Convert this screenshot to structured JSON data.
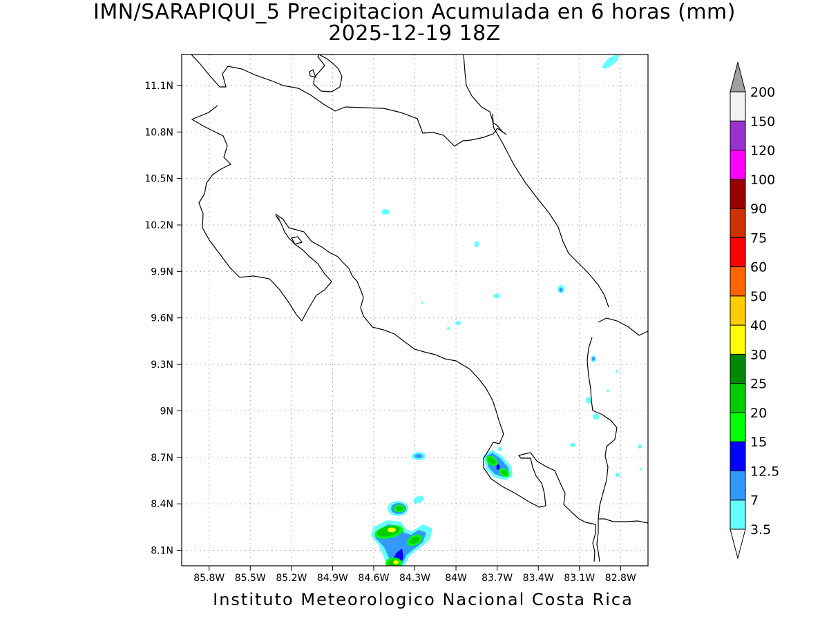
{
  "title": {
    "line1": "IMN/SARAPIQUI_5 Precipitacion Acumulada en 6 horas (mm)",
    "line2": "2025-12-19 18Z"
  },
  "footer": "Instituto Meteorologico Nacional Costa Rica",
  "map": {
    "lon_range": [
      -86.0,
      -82.6
    ],
    "lat_range": [
      8.0,
      11.3
    ],
    "lon_ticks": [
      {
        "value": -85.8,
        "label": "85.8W"
      },
      {
        "value": -85.5,
        "label": "85.5W"
      },
      {
        "value": -85.2,
        "label": "85.2W"
      },
      {
        "value": -84.9,
        "label": "84.9W"
      },
      {
        "value": -84.6,
        "label": "84.6W"
      },
      {
        "value": -84.3,
        "label": "84.3W"
      },
      {
        "value": -84.0,
        "label": "84W"
      },
      {
        "value": -83.7,
        "label": "83.7W"
      },
      {
        "value": -83.4,
        "label": "83.4W"
      },
      {
        "value": -83.1,
        "label": "83.1W"
      },
      {
        "value": -82.8,
        "label": "82.8W"
      }
    ],
    "lat_ticks": [
      {
        "value": 8.1,
        "label": "8.1N"
      },
      {
        "value": 8.4,
        "label": "8.4N"
      },
      {
        "value": 8.7,
        "label": "8.7N"
      },
      {
        "value": 9.0,
        "label": "9N"
      },
      {
        "value": 9.3,
        "label": "9.3N"
      },
      {
        "value": 9.6,
        "label": "9.6N"
      },
      {
        "value": 9.9,
        "label": "9.9N"
      },
      {
        "value": 10.2,
        "label": "10.2N"
      },
      {
        "value": 10.5,
        "label": "10.5N"
      },
      {
        "value": 10.8,
        "label": "10.8N"
      },
      {
        "value": 11.1,
        "label": "11.1N"
      }
    ],
    "grid": "dotted"
  },
  "legend": {
    "units": "mm",
    "levels": [
      "3.5",
      "7",
      "12.5",
      "15",
      "20",
      "25",
      "30",
      "40",
      "50",
      "60",
      "75",
      "90",
      "100",
      "120",
      "150",
      "200"
    ],
    "colors": [
      "#66ffff",
      "#3399ff",
      "#0000ff",
      "#00ff00",
      "#00cc00",
      "#008800",
      "#ffff00",
      "#ffcc00",
      "#ff6600",
      "#ff0000",
      "#cc3300",
      "#990000",
      "#ff00ff",
      "#9933cc",
      "#f2f2f2",
      "#a0a0a0"
    ],
    "low_end_color": "#ffffff",
    "high_end_color": "#a0a0a0"
  },
  "precip_cells": [
    {
      "lon": -84.44,
      "lat": 8.06,
      "peak_mm": 40
    },
    {
      "lon": -84.46,
      "lat": 8.24,
      "peak_mm": 30
    },
    {
      "lon": -84.3,
      "lat": 8.18,
      "peak_mm": 30
    },
    {
      "lon": -84.43,
      "lat": 8.38,
      "peak_mm": 25
    },
    {
      "lon": -83.67,
      "lat": 8.66,
      "peak_mm": 30
    },
    {
      "lon": -84.26,
      "lat": 8.71,
      "peak_mm": 7
    },
    {
      "lon": -82.84,
      "lat": 11.27,
      "peak_mm": 3.5
    }
  ]
}
